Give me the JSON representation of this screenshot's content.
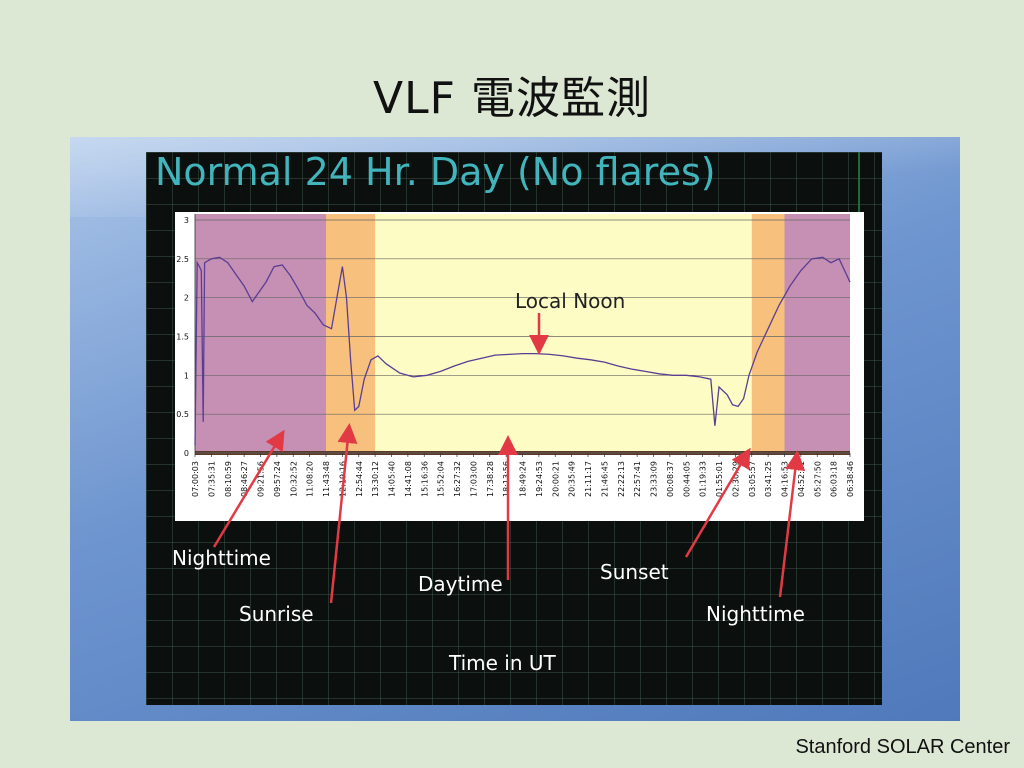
{
  "slide": {
    "title": "VLF 電波監測",
    "credit": "Stanford SOLAR Center"
  },
  "annotations": {
    "local_noon": "Local Noon",
    "nighttime_left": "Nighttime",
    "sunrise": "Sunrise",
    "daytime": "Daytime",
    "sunset": "Sunset",
    "nighttime_right": "Nighttime",
    "x_axis_title": "Time in UT"
  },
  "colors": {
    "night": "#c690b4",
    "sunrise": "#f7c07c",
    "day": "#fdfcc4",
    "line": "#5b3e93",
    "heading": "#41b4bc",
    "arrow": "#e23a45"
  },
  "chart_data": {
    "type": "line",
    "title": "Normal 24 Hr. Day (No flares)",
    "xlabel": "Time in UT",
    "ylabel": "",
    "ylim": [
      0,
      3
    ],
    "yticks": [
      "0",
      "0.5",
      "1",
      "1.5",
      "2",
      "2.5",
      "3"
    ],
    "grid": true,
    "x_tick_labels": [
      "07:00:03",
      "07:35:31",
      "08:10:59",
      "08:46:27",
      "09:21:56",
      "09:57:24",
      "10:32:52",
      "11:08:20",
      "11:43:48",
      "12:19:16",
      "12:54:44",
      "13:30:12",
      "14:05:40",
      "14:41:08",
      "15:16:36",
      "15:52:04",
      "16:27:32",
      "17:03:00",
      "17:38:28",
      "18:13:56",
      "18:49:24",
      "19:24:53",
      "20:00:21",
      "20:35:49",
      "21:11:17",
      "21:46:45",
      "22:22:13",
      "22:57:41",
      "23:33:09",
      "00:08:37",
      "00:44:05",
      "01:19:33",
      "01:55:01",
      "02:30:29",
      "03:05:57",
      "03:41:25",
      "04:16:53",
      "04:52:21",
      "05:27:50",
      "06:03:18",
      "06:38:46"
    ],
    "bands": [
      {
        "label": "Nighttime",
        "from": "07:00:03",
        "to": "11:43:48",
        "color": "#c690b4"
      },
      {
        "label": "Sunrise",
        "from": "11:43:48",
        "to": "13:30:12",
        "color": "#f7c07c"
      },
      {
        "label": "Daytime",
        "from": "13:30:12",
        "to": "03:05:57",
        "color": "#fdfcc4"
      },
      {
        "label": "Sunset",
        "from": "03:05:57",
        "to": "04:16:53",
        "color": "#f7c07c"
      },
      {
        "label": "Nighttime",
        "from": "04:16:53",
        "to": "07:00:03",
        "color": "#c690b4"
      }
    ],
    "series": [
      {
        "values": [
          [
            0.0,
            0.1
          ],
          [
            0.08,
            2.45
          ],
          [
            0.16,
            2.4
          ],
          [
            0.23,
            2.35
          ],
          [
            0.3,
            0.4
          ],
          [
            0.35,
            2.45
          ],
          [
            0.6,
            2.5
          ],
          [
            0.9,
            2.52
          ],
          [
            1.2,
            2.45
          ],
          [
            1.5,
            2.3
          ],
          [
            1.8,
            2.15
          ],
          [
            2.1,
            1.95
          ],
          [
            2.3,
            2.05
          ],
          [
            2.6,
            2.2
          ],
          [
            2.9,
            2.4
          ],
          [
            3.2,
            2.42
          ],
          [
            3.5,
            2.28
          ],
          [
            3.8,
            2.1
          ],
          [
            4.1,
            1.9
          ],
          [
            4.4,
            1.8
          ],
          [
            4.7,
            1.65
          ],
          [
            5.0,
            1.6
          ],
          [
            5.2,
            2.0
          ],
          [
            5.4,
            2.4
          ],
          [
            5.55,
            2.0
          ],
          [
            5.7,
            1.2
          ],
          [
            5.85,
            0.55
          ],
          [
            6.0,
            0.6
          ],
          [
            6.2,
            0.95
          ],
          [
            6.45,
            1.2
          ],
          [
            6.7,
            1.25
          ],
          [
            7.0,
            1.15
          ],
          [
            7.5,
            1.03
          ],
          [
            8.0,
            0.98
          ],
          [
            8.5,
            1.0
          ],
          [
            9.0,
            1.05
          ],
          [
            9.5,
            1.12
          ],
          [
            10.0,
            1.18
          ],
          [
            10.5,
            1.22
          ],
          [
            11.0,
            1.26
          ],
          [
            11.5,
            1.27
          ],
          [
            12.0,
            1.28
          ],
          [
            12.5,
            1.28
          ],
          [
            13.0,
            1.27
          ],
          [
            13.5,
            1.25
          ],
          [
            14.0,
            1.22
          ],
          [
            14.5,
            1.2
          ],
          [
            15.0,
            1.17
          ],
          [
            15.5,
            1.12
          ],
          [
            16.0,
            1.08
          ],
          [
            16.5,
            1.05
          ],
          [
            17.0,
            1.02
          ],
          [
            17.5,
            1.0
          ],
          [
            18.0,
            1.0
          ],
          [
            18.5,
            0.98
          ],
          [
            18.9,
            0.95
          ],
          [
            19.05,
            0.35
          ],
          [
            19.2,
            0.85
          ],
          [
            19.5,
            0.75
          ],
          [
            19.7,
            0.62
          ],
          [
            19.9,
            0.6
          ],
          [
            20.1,
            0.7
          ],
          [
            20.3,
            1.0
          ],
          [
            20.6,
            1.3
          ],
          [
            21.0,
            1.6
          ],
          [
            21.4,
            1.9
          ],
          [
            21.8,
            2.15
          ],
          [
            22.2,
            2.35
          ],
          [
            22.6,
            2.5
          ],
          [
            23.0,
            2.52
          ],
          [
            23.3,
            2.45
          ],
          [
            23.6,
            2.5
          ],
          [
            24.0,
            2.2
          ]
        ]
      }
    ],
    "annotations": [
      "Local Noon",
      "Nighttime",
      "Sunrise",
      "Daytime",
      "Sunset",
      "Nighttime",
      "Time in UT"
    ]
  }
}
